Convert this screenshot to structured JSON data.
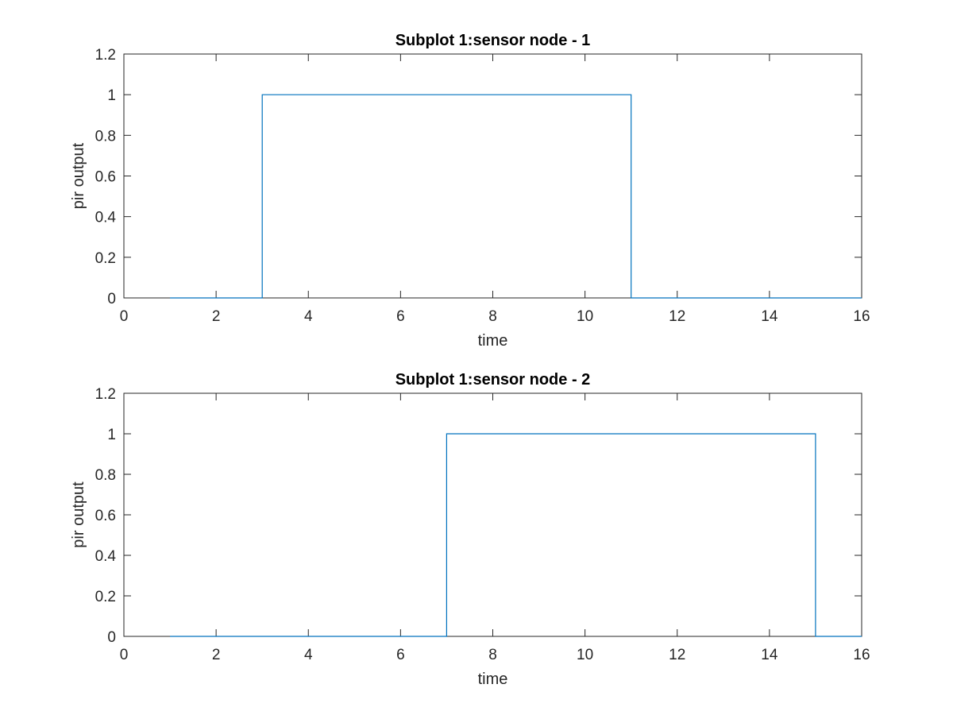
{
  "chart_data": [
    {
      "type": "line",
      "title": "Subplot 1:sensor node - 1",
      "xlabel": "time",
      "ylabel": "pir output",
      "xlim": [
        0,
        16
      ],
      "ylim": [
        0,
        1.2
      ],
      "x_ticks": [
        "0",
        "2",
        "4",
        "6",
        "8",
        "10",
        "12",
        "14",
        "16"
      ],
      "y_ticks": [
        "0",
        "0.2",
        "0.4",
        "0.6",
        "0.8",
        "1",
        "1.2"
      ],
      "grid": false,
      "series": [
        {
          "color": "#0072BD",
          "x": [
            1,
            3,
            3,
            11,
            11,
            16
          ],
          "y": [
            0,
            0,
            1,
            1,
            0,
            0
          ]
        }
      ]
    },
    {
      "type": "line",
      "title": "Subplot 1:sensor node - 2",
      "xlabel": "time",
      "ylabel": "pir output",
      "xlim": [
        0,
        16
      ],
      "ylim": [
        0,
        1.2
      ],
      "x_ticks": [
        "0",
        "2",
        "4",
        "6",
        "8",
        "10",
        "12",
        "14",
        "16"
      ],
      "y_ticks": [
        "0",
        "0.2",
        "0.4",
        "0.6",
        "0.8",
        "1",
        "1.2"
      ],
      "grid": false,
      "series": [
        {
          "color": "#0072BD",
          "x": [
            1,
            7,
            7,
            15,
            15,
            16
          ],
          "y": [
            0,
            0,
            1,
            1,
            0,
            0
          ]
        }
      ]
    }
  ]
}
